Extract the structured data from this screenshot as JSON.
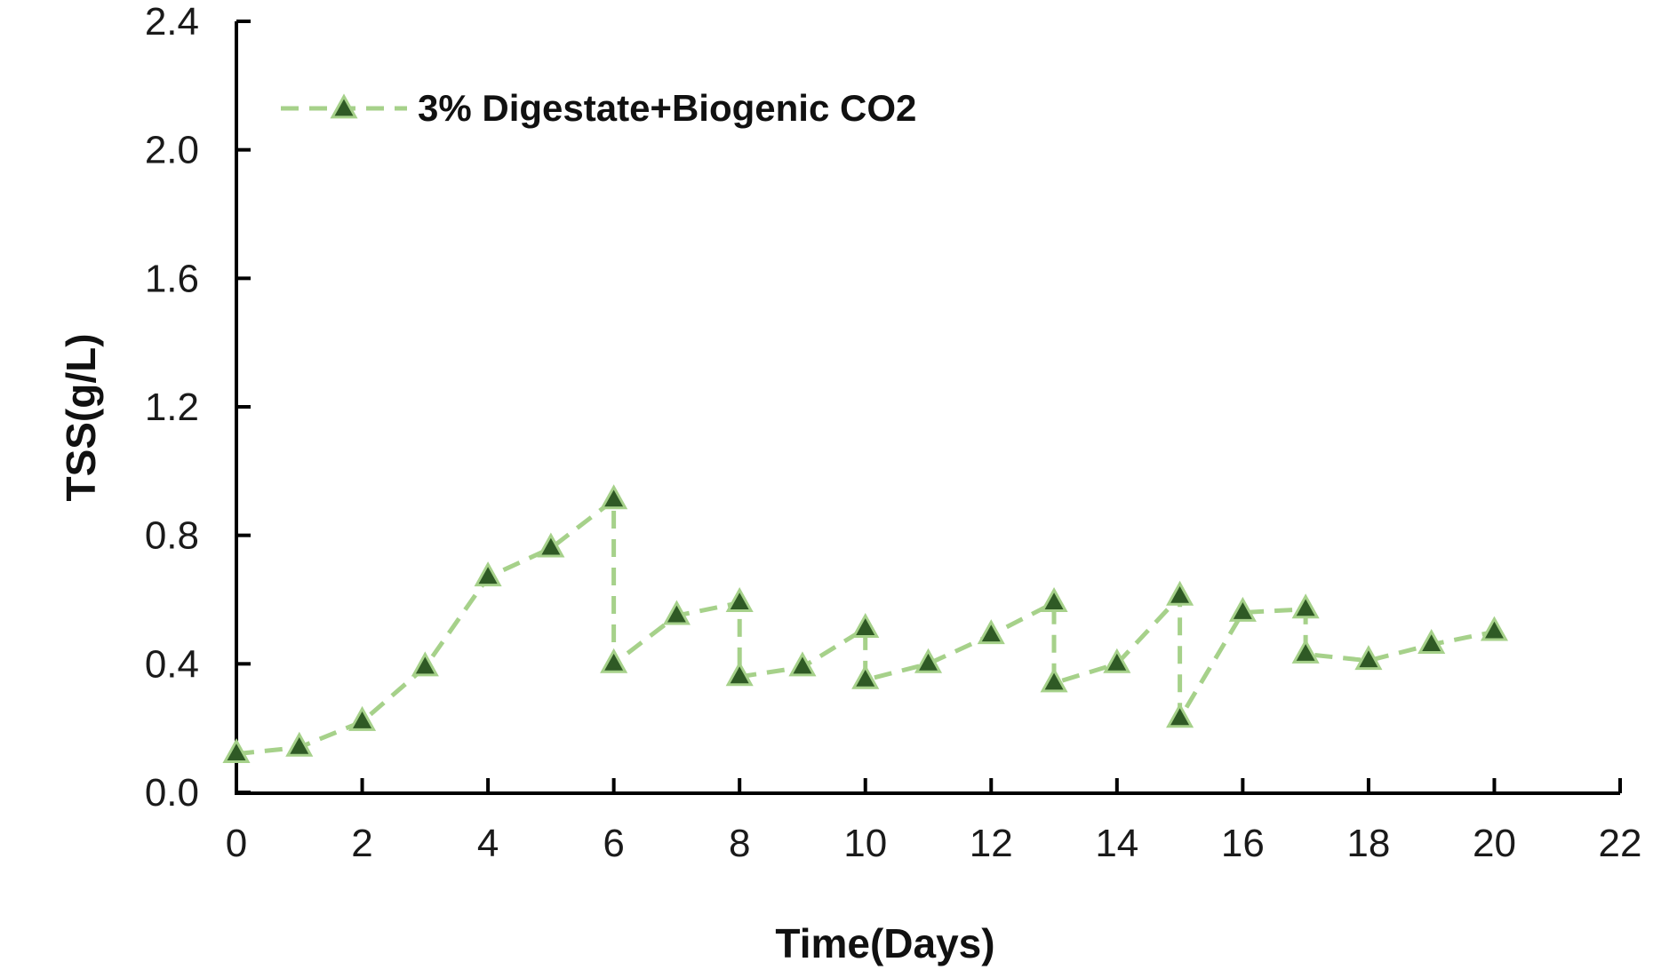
{
  "chart_data": {
    "type": "line",
    "title": "",
    "xlabel": "Time(Days)",
    "ylabel": "TSS(g/L)",
    "xlim": [
      0,
      22
    ],
    "ylim": [
      0,
      2.4
    ],
    "x_ticks": [
      0,
      2,
      4,
      6,
      8,
      10,
      12,
      14,
      16,
      18,
      20,
      22
    ],
    "y_ticks": [
      0.0,
      0.4,
      0.8,
      1.2,
      1.6,
      2.0,
      2.4
    ],
    "y_tick_labels": [
      "0.0",
      "0.4",
      "0.8",
      "1.2",
      "1.6",
      "2.0",
      "2.4"
    ],
    "grid": false,
    "legend_position": "top-left",
    "series": [
      {
        "name": "3% Digestate+Biogenic CO2",
        "line_color": "#a6d18a",
        "marker_fill": "#2f5a25",
        "marker_edge": "#a6d18a",
        "line_style": "dashed",
        "marker": "triangle",
        "x": [
          0,
          1,
          2,
          3,
          4,
          5,
          6,
          6,
          7,
          8,
          8,
          9,
          10,
          10,
          11,
          12,
          13,
          13,
          14,
          15,
          15,
          16,
          17,
          17,
          18,
          19,
          20
        ],
        "y": [
          0.12,
          0.14,
          0.22,
          0.39,
          0.67,
          0.76,
          0.91,
          0.4,
          0.55,
          0.59,
          0.36,
          0.39,
          0.51,
          0.35,
          0.4,
          0.49,
          0.59,
          0.34,
          0.4,
          0.61,
          0.23,
          0.56,
          0.57,
          0.43,
          0.41,
          0.46,
          0.5
        ]
      }
    ]
  }
}
